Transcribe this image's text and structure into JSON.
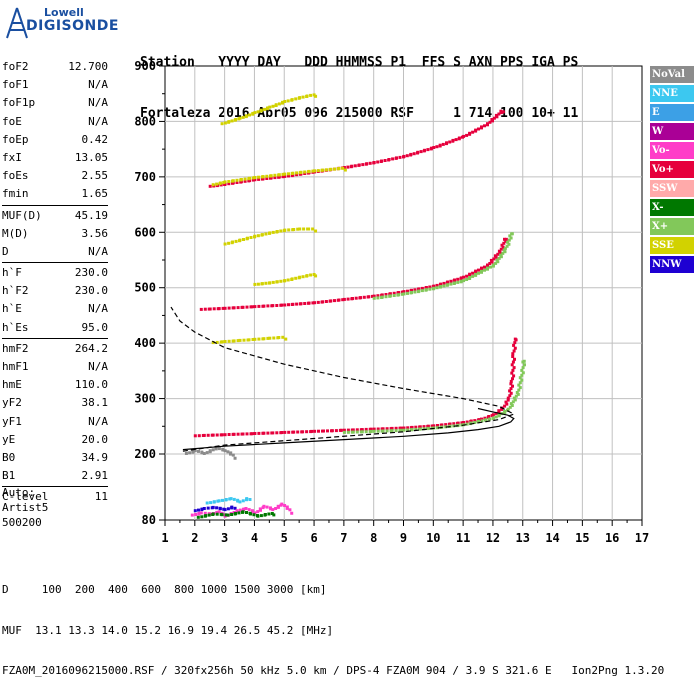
{
  "logo": {
    "line1": "Lowell",
    "line2": "DIGISONDE"
  },
  "header": {
    "row1": "Station   YYYY DAY   DDD HHMMSS P1  FFS S AXN PPS IGA PS",
    "row2": "Fortaleza 2016 Abr05 096 215000 RSF     1 714 100 10+ 11"
  },
  "params": [
    {
      "k": "foF2",
      "v": "12.700"
    },
    {
      "k": "foF1",
      "v": "N/A"
    },
    {
      "k": "foF1p",
      "v": "N/A"
    },
    {
      "k": "foE",
      "v": "N/A"
    },
    {
      "k": "foEp",
      "v": "0.42"
    },
    {
      "k": "fxI",
      "v": "13.05"
    },
    {
      "k": "foEs",
      "v": "2.55"
    },
    {
      "k": "fmin",
      "v": "1.65"
    },
    {
      "sep": true
    },
    {
      "k": "MUF(D)",
      "v": "45.19"
    },
    {
      "k": "M(D)",
      "v": "3.56"
    },
    {
      "k": "D",
      "v": "N/A"
    },
    {
      "sep": true
    },
    {
      "k": "h`F",
      "v": "230.0"
    },
    {
      "k": "h`F2",
      "v": "230.0"
    },
    {
      "k": "h`E",
      "v": "N/A"
    },
    {
      "k": "h`Es",
      "v": "95.0"
    },
    {
      "sep": true
    },
    {
      "k": "hmF2",
      "v": "264.2"
    },
    {
      "k": "hmF1",
      "v": "N/A"
    },
    {
      "k": "hmE",
      "v": "110.0"
    },
    {
      "k": "yF2",
      "v": "38.1"
    },
    {
      "k": "yF1",
      "v": "N/A"
    },
    {
      "k": "yE",
      "v": "20.0"
    },
    {
      "k": "B0",
      "v": "34.9"
    },
    {
      "k": "B1",
      "v": "2.91"
    },
    {
      "sep": true
    },
    {
      "k": "C-level",
      "v": "11"
    }
  ],
  "auto": {
    "line1": "Auto:",
    "line2": "Artist5",
    "line3": "500200"
  },
  "legend": [
    {
      "label": "NoVal",
      "color": "#8c8c8c"
    },
    {
      "label": "NNE",
      "color": "#3cc8f0"
    },
    {
      "label": "E",
      "color": "#3ca0e6"
    },
    {
      "label": "W",
      "color": "#aa0096"
    },
    {
      "label": "Vo-",
      "color": "#ff3cc8"
    },
    {
      "label": "Vo+",
      "color": "#e6003c"
    },
    {
      "label": "SSW",
      "color": "#ffaaaa"
    },
    {
      "label": "X-",
      "color": "#007800"
    },
    {
      "label": "X+",
      "color": "#82c85a"
    },
    {
      "label": "SSE",
      "color": "#d2d200"
    },
    {
      "label": "NNW",
      "color": "#1e00d2"
    }
  ],
  "footer": {
    "row1": "D     100  200  400  600  800 1000 1500 3000 [km]",
    "row2": "MUF  13.1 13.3 14.0 15.2 16.9 19.4 26.5 45.2 [MHz]",
    "row3": "FZA0M_2016096215000.RSF / 320fx256h 50 kHz 5.0 km / DPS-4 FZA0M 904 / 3.9 S 321.6 E   Ion2Png 1.3.20"
  },
  "chart_data": {
    "type": "scatter",
    "xlim": [
      1,
      17
    ],
    "ylim": [
      80,
      900
    ],
    "xticks": [
      "1",
      "2",
      "3",
      "4",
      "5",
      "6",
      "7",
      "8",
      "9",
      "10",
      "11",
      "12",
      "13",
      "14",
      "15",
      "16",
      "17"
    ],
    "yticks": [
      "80",
      "200",
      "300",
      "400",
      "500",
      "600",
      "700",
      "800",
      "900"
    ],
    "grid": true,
    "traces": [
      {
        "color": "#e6003c",
        "points": [
          [
            2.0,
            232
          ],
          [
            3.0,
            234
          ],
          [
            4.0,
            236
          ],
          [
            5.0,
            238
          ],
          [
            6.0,
            240
          ],
          [
            7.0,
            242
          ],
          [
            8.0,
            244
          ],
          [
            9.0,
            246
          ],
          [
            10.0,
            250
          ],
          [
            11.0,
            256
          ],
          [
            11.6,
            262
          ],
          [
            12.0,
            270
          ],
          [
            12.3,
            282
          ],
          [
            12.5,
            300
          ],
          [
            12.6,
            330
          ],
          [
            12.65,
            380
          ],
          [
            12.7,
            410
          ]
        ]
      },
      {
        "color": "#82c85a",
        "points": [
          [
            7.0,
            238
          ],
          [
            8.0,
            240
          ],
          [
            9.0,
            242
          ],
          [
            10.0,
            246
          ],
          [
            11.0,
            252
          ],
          [
            12.0,
            264
          ],
          [
            12.5,
            280
          ],
          [
            12.8,
            310
          ],
          [
            12.95,
            350
          ],
          [
            13.0,
            370
          ]
        ]
      },
      {
        "color": "#e6003c",
        "points": [
          [
            2.2,
            460
          ],
          [
            3.0,
            462
          ],
          [
            4.0,
            465
          ],
          [
            5.0,
            468
          ],
          [
            6.0,
            472
          ],
          [
            7.0,
            478
          ],
          [
            8.0,
            484
          ],
          [
            9.0,
            492
          ],
          [
            10.0,
            502
          ],
          [
            11.0,
            518
          ],
          [
            11.8,
            540
          ],
          [
            12.2,
            565
          ],
          [
            12.4,
            590
          ]
        ]
      },
      {
        "color": "#82c85a",
        "points": [
          [
            8.0,
            480
          ],
          [
            9.0,
            488
          ],
          [
            10.0,
            498
          ],
          [
            11.0,
            512
          ],
          [
            12.0,
            540
          ],
          [
            12.4,
            570
          ],
          [
            12.6,
            600
          ]
        ]
      },
      {
        "color": "#e6003c",
        "points": [
          [
            2.5,
            682
          ],
          [
            3.0,
            686
          ],
          [
            4.0,
            694
          ],
          [
            5.0,
            700
          ],
          [
            6.0,
            708
          ],
          [
            7.0,
            716
          ],
          [
            8.0,
            725
          ],
          [
            9.0,
            736
          ],
          [
            10.0,
            752
          ],
          [
            11.0,
            772
          ],
          [
            11.8,
            795
          ],
          [
            12.3,
            820
          ]
        ]
      },
      {
        "color": "#d2d200",
        "points": [
          [
            2.6,
            685
          ],
          [
            3.0,
            690
          ],
          [
            4.0,
            698
          ],
          [
            5.0,
            704
          ],
          [
            6.0,
            710
          ],
          [
            7.0,
            715
          ]
        ]
      },
      {
        "color": "#d2d200",
        "points": [
          [
            2.9,
            795
          ],
          [
            3.5,
            805
          ],
          [
            4.0,
            815
          ],
          [
            4.5,
            825
          ],
          [
            5.0,
            835
          ],
          [
            5.5,
            842
          ],
          [
            6.0,
            848
          ]
        ]
      },
      {
        "color": "#d2d200",
        "points": [
          [
            3.0,
            578
          ],
          [
            3.5,
            585
          ],
          [
            4.0,
            592
          ],
          [
            4.5,
            598
          ],
          [
            5.0,
            603
          ],
          [
            5.5,
            605
          ],
          [
            6.0,
            605
          ]
        ]
      },
      {
        "color": "#d2d200",
        "points": [
          [
            2.6,
            400
          ],
          [
            3.0,
            402
          ],
          [
            3.5,
            404
          ],
          [
            4.0,
            406
          ],
          [
            4.5,
            408
          ],
          [
            5.0,
            410
          ]
        ]
      },
      {
        "color": "#d2d200",
        "points": [
          [
            4.0,
            505
          ],
          [
            4.5,
            508
          ],
          [
            5.0,
            512
          ],
          [
            5.5,
            518
          ],
          [
            6.0,
            524
          ]
        ]
      },
      {
        "color": "#1e00d2",
        "points": [
          [
            2.0,
            96
          ],
          [
            2.3,
            100
          ],
          [
            2.6,
            102
          ],
          [
            3.0,
            98
          ],
          [
            3.3,
            104
          ]
        ]
      },
      {
        "color": "#3cc8f0",
        "points": [
          [
            2.4,
            110
          ],
          [
            2.8,
            114
          ],
          [
            3.2,
            118
          ],
          [
            3.5,
            112
          ],
          [
            3.8,
            120
          ]
        ]
      },
      {
        "color": "#ff3cc8",
        "points": [
          [
            1.9,
            88
          ],
          [
            2.2,
            92
          ],
          [
            2.5,
            90
          ],
          [
            2.8,
            94
          ],
          [
            3.0,
            86
          ],
          [
            3.4,
            96
          ],
          [
            3.7,
            100
          ],
          [
            4.0,
            92
          ],
          [
            4.3,
            104
          ],
          [
            4.6,
            98
          ],
          [
            4.9,
            108
          ],
          [
            5.2,
            95
          ]
        ]
      },
      {
        "color": "#007800",
        "points": [
          [
            2.1,
            84
          ],
          [
            2.6,
            90
          ],
          [
            3.1,
            88
          ],
          [
            3.6,
            94
          ],
          [
            4.1,
            86
          ],
          [
            4.6,
            92
          ]
        ]
      },
      {
        "color": "#8c8c8c",
        "points": [
          [
            1.7,
            200
          ],
          [
            2.0,
            205
          ],
          [
            2.3,
            200
          ],
          [
            2.7,
            210
          ],
          [
            3.0,
            205
          ],
          [
            3.3,
            195
          ]
        ]
      }
    ],
    "profiles": [
      {
        "style": "solid",
        "points": [
          [
            1.6,
            208
          ],
          [
            3.0,
            214
          ],
          [
            5.0,
            220
          ],
          [
            7.0,
            226
          ],
          [
            9.0,
            232
          ],
          [
            10.5,
            238
          ],
          [
            11.5,
            244
          ],
          [
            12.2,
            250
          ],
          [
            12.6,
            258
          ],
          [
            12.7,
            264
          ],
          [
            12.5,
            270
          ],
          [
            12.0,
            276
          ],
          [
            11.5,
            282
          ]
        ]
      },
      {
        "style": "dashed",
        "points": [
          [
            1.6,
            205
          ],
          [
            3.0,
            216
          ],
          [
            6.0,
            228
          ],
          [
            9.0,
            240
          ],
          [
            11.0,
            252
          ],
          [
            12.2,
            262
          ],
          [
            12.7,
            272
          ],
          [
            12.2,
            286
          ],
          [
            11.0,
            300
          ],
          [
            9.0,
            318
          ],
          [
            7.0,
            338
          ],
          [
            5.0,
            362
          ],
          [
            3.0,
            392
          ],
          [
            2.0,
            420
          ],
          [
            1.5,
            440
          ],
          [
            1.2,
            465
          ]
        ]
      }
    ]
  }
}
